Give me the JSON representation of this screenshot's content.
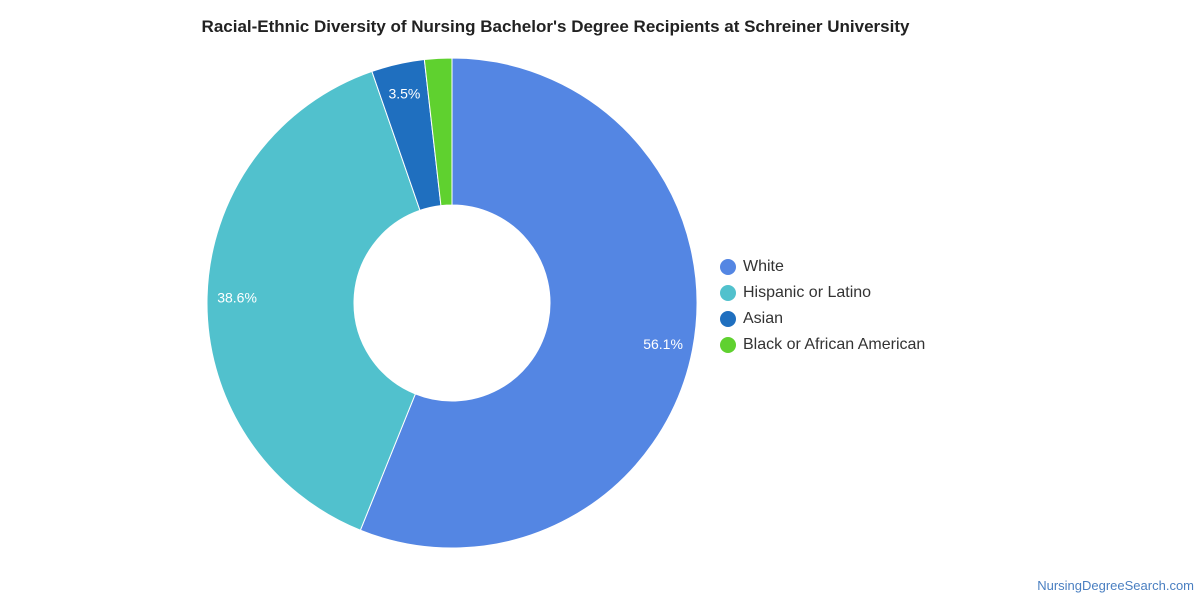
{
  "chart_data": {
    "type": "pie",
    "title": "Racial-Ethnic Diversity of Nursing Bachelor's Degree Recipients at Schreiner University",
    "donut": true,
    "legend_position": "right",
    "slices": [
      {
        "name": "White",
        "value": 56.1,
        "label": "56.1%",
        "color": "#5486e3"
      },
      {
        "name": "Hispanic or Latino",
        "value": 38.6,
        "label": "38.6%",
        "color": "#51c1cd"
      },
      {
        "name": "Asian",
        "value": 3.5,
        "label": "3.5%",
        "color": "#1f6fbf"
      },
      {
        "name": "Black or African American",
        "value": 1.8,
        "label": "",
        "color": "#5fd12f"
      }
    ]
  },
  "footer": {
    "source": "NursingDegreeSearch.com"
  }
}
